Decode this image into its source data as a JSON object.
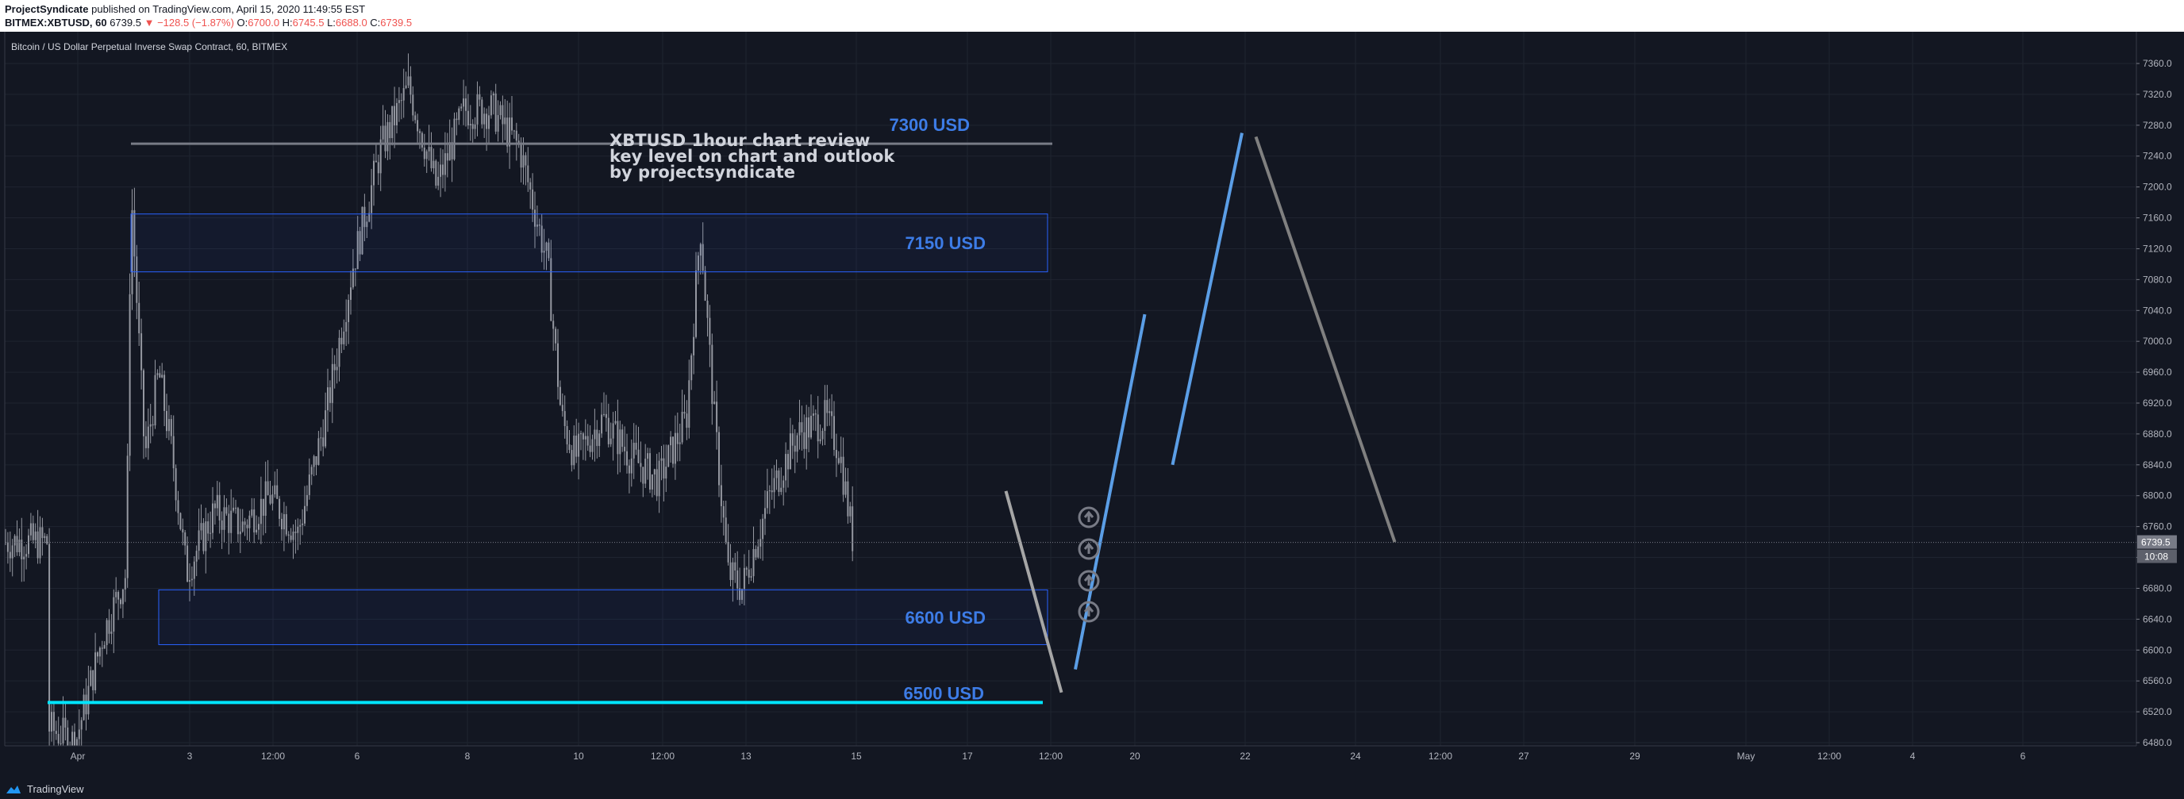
{
  "header": {
    "publisher": "ProjectSyndicate",
    "published_text": "published on TradingView.com, April 15, 2020 11:49:55 EST",
    "symbol": "BITMEX:XBTUSD, 60",
    "last": "6739.5",
    "change": "▼ −128.5 (−1.87%)",
    "o_label": "O:",
    "o_val": "6700.0",
    "h_label": "H:",
    "h_val": "6745.5",
    "l_label": "L:",
    "l_val": "6688.0",
    "c_label": "C:",
    "c_val": "6739.5"
  },
  "symbol_description": "Bitcoin / US Dollar Perpetual Inverse Swap Contract, 60, BITMEX",
  "footer": {
    "brand": "TradingView"
  },
  "colors": {
    "background": "#131722",
    "grid": "#1f2430",
    "candle": "#9598a1",
    "zone_border": "#2962ff",
    "zone_label": "#3d7ce6",
    "support_line": "#00e5ff",
    "resistance_line": "#787b86",
    "projection_blue": "#5b9ee6",
    "projection_grey": "#808080",
    "arrow_icon": "#787b86"
  },
  "chart_data": {
    "type": "candlestick",
    "x_ticks": [
      "Apr",
      "3",
      "12:00",
      "6",
      "8",
      "10",
      "12:00",
      "13",
      "15",
      "17",
      "12:00",
      "20",
      "22",
      "24",
      "12:00",
      "27",
      "29",
      "May",
      "12:00",
      "4",
      "6"
    ],
    "y_ticks": [
      7360.0,
      7320.0,
      7280.0,
      7240.0,
      7200.0,
      7160.0,
      7120.0,
      7080.0,
      7040.0,
      7000.0,
      6960.0,
      6920.0,
      6880.0,
      6840.0,
      6800.0,
      6760.0,
      6720.0,
      6680.0,
      6640.0,
      6600.0,
      6560.0,
      6520.0,
      6480.0
    ],
    "ylim": [
      6470,
      7370
    ],
    "last_price": 6739.5,
    "last_price_label": "6739.5",
    "countdown_label": "10:08",
    "price_path": [
      [
        "Apr 1 00:00",
        6500
      ],
      [
        "Apr 1 12:00",
        6480
      ],
      [
        "Apr 2 00:00",
        6620
      ],
      [
        "Apr 2 10:00",
        6700
      ],
      [
        "Apr 2 12:00",
        7200
      ],
      [
        "Apr 2 18:00",
        6850
      ],
      [
        "Apr 3 00:00",
        6960
      ],
      [
        "Apr 3 06:00",
        6850
      ],
      [
        "Apr 3 12:00",
        6700
      ],
      [
        "Apr 4 00:00",
        6780
      ],
      [
        "Apr 4 12:00",
        6760
      ],
      [
        "Apr 5 00:00",
        6800
      ],
      [
        "Apr 5 12:00",
        6750
      ],
      [
        "Apr 6 00:00",
        6900
      ],
      [
        "Apr 6 12:00",
        7100
      ],
      [
        "Apr 7 00:00",
        7250
      ],
      [
        "Apr 7 12:00",
        7330
      ],
      [
        "Apr 8 00:00",
        7200
      ],
      [
        "Apr 8 12:00",
        7300
      ],
      [
        "Apr 9 00:00",
        7300
      ],
      [
        "Apr 9 12:00",
        7250
      ],
      [
        "Apr 10 00:00",
        7100
      ],
      [
        "Apr 10 06:00",
        6900
      ],
      [
        "Apr 10 12:00",
        6850
      ],
      [
        "Apr 11 00:00",
        6900
      ],
      [
        "Apr 11 12:00",
        6850
      ],
      [
        "Apr 12 00:00",
        6820
      ],
      [
        "Apr 12 12:00",
        6900
      ],
      [
        "Apr 12 18:00",
        7150
      ],
      [
        "Apr 13 00:00",
        6900
      ],
      [
        "Apr 13 06:00",
        6700
      ],
      [
        "Apr 13 12:00",
        6680
      ],
      [
        "Apr 14 00:00",
        6800
      ],
      [
        "Apr 14 12:00",
        6880
      ],
      [
        "Apr 15 00:00",
        6900
      ],
      [
        "Apr 15 06:00",
        6860
      ],
      [
        "Apr 15 12:00",
        6740
      ]
    ],
    "zones": [
      {
        "name": "7150-zone",
        "label": "7150 USD",
        "low": 7090,
        "high": 7165,
        "from": "Apr 2 12:00",
        "to": "Apr 19 00:00"
      },
      {
        "name": "6600-zone",
        "label": "6600 USD",
        "low": 6607,
        "high": 6678,
        "from": "Apr 3 00:00",
        "to": "Apr 19 00:00"
      }
    ],
    "levels": [
      {
        "name": "resistance-7300",
        "label": "7300 USD",
        "value": 7256,
        "from": "Apr 2 12:00",
        "to": "Apr 19 00:00"
      },
      {
        "name": "support-6500",
        "label": "6500 USD",
        "value": 6532,
        "from": "Apr 1 00:00",
        "to": "Apr 19 00:00"
      }
    ],
    "annotation": [
      "XBTUSD 1hour chart review",
      "key level on chart and outlook",
      "by projectsyndicate"
    ],
    "projections": [
      {
        "name": "projection-down-1",
        "color": "grey",
        "from": [
          "Apr 18 06:00",
          6806
        ],
        "to": [
          "Apr 19 06:00",
          6545
        ]
      },
      {
        "name": "projection-up-1",
        "color": "blue",
        "from": [
          "Apr 19 12:00",
          6575
        ],
        "to": [
          "Apr 20 18:00",
          7035
        ]
      },
      {
        "name": "projection-up-2",
        "color": "blue",
        "from": [
          "Apr 21 06:00",
          6840
        ],
        "to": [
          "Apr 22 12:00",
          7270
        ]
      },
      {
        "name": "projection-down-2",
        "color": "grey",
        "from": [
          "Apr 22 18:00",
          7265
        ],
        "to": [
          "Apr 25 06:00",
          6740
        ]
      }
    ],
    "arrow_markers": 4,
    "grid": true,
    "legend": false
  }
}
